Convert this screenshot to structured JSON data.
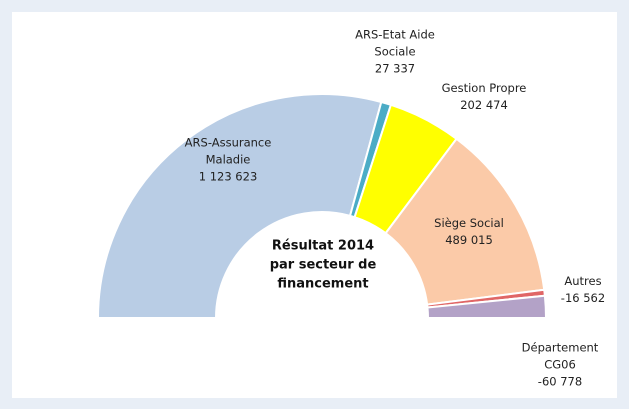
{
  "chart_data": {
    "type": "pie",
    "title": "Résultat 2014 par secteur de financement",
    "categories": [
      "ARS-Assurance Maladie",
      "ARS-Etat Aide Sociale",
      "Gestion Propre",
      "Siège Social",
      "Autres",
      "Département CG06"
    ],
    "values": [
      1123623,
      27337,
      202474,
      489015,
      -16562,
      -60778
    ],
    "value_labels": [
      "1 123 623",
      "27 337",
      "202 474",
      "489 015",
      "-16 562",
      "-60 778"
    ],
    "colors": [
      "#b9cde5",
      "#4bacc6",
      "#ffff00",
      "#fbcaa8",
      "#e06666",
      "#b3a2c7"
    ]
  }
}
